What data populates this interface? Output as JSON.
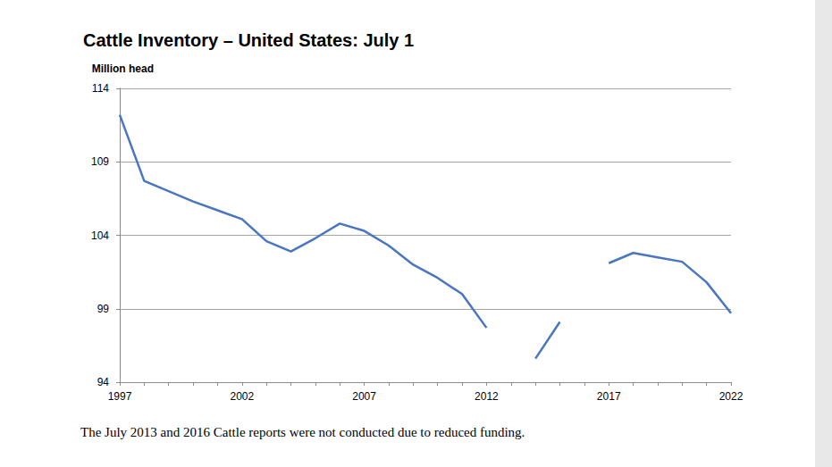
{
  "chart_data": {
    "type": "line",
    "title": "Cattle Inventory – United States: July 1",
    "y_label": "Million head",
    "annotation": "The July 2013 and 2016 Cattle reports were not conducted due to reduced funding.",
    "categories": [
      "1997",
      null,
      null,
      null,
      null,
      "2002",
      null,
      null,
      null,
      null,
      "2007",
      null,
      null,
      null,
      null,
      "2012",
      null,
      null,
      null,
      null,
      "2017",
      null,
      null,
      null,
      null,
      "2022"
    ],
    "values": [
      112.2,
      107.7,
      107.0,
      106.3,
      105.7,
      105.1,
      103.6,
      102.9,
      103.8,
      104.8,
      104.3,
      103.3,
      102.0,
      101.1,
      100.0,
      97.7,
      null,
      95.6,
      98.1,
      null,
      102.1,
      102.8,
      102.5,
      102.2,
      100.8,
      98.7
    ],
    "color": "#4a76c0",
    "ylim": [
      94,
      114
    ],
    "yticks": [
      94,
      99,
      104,
      109,
      114
    ],
    "grid": true
  }
}
